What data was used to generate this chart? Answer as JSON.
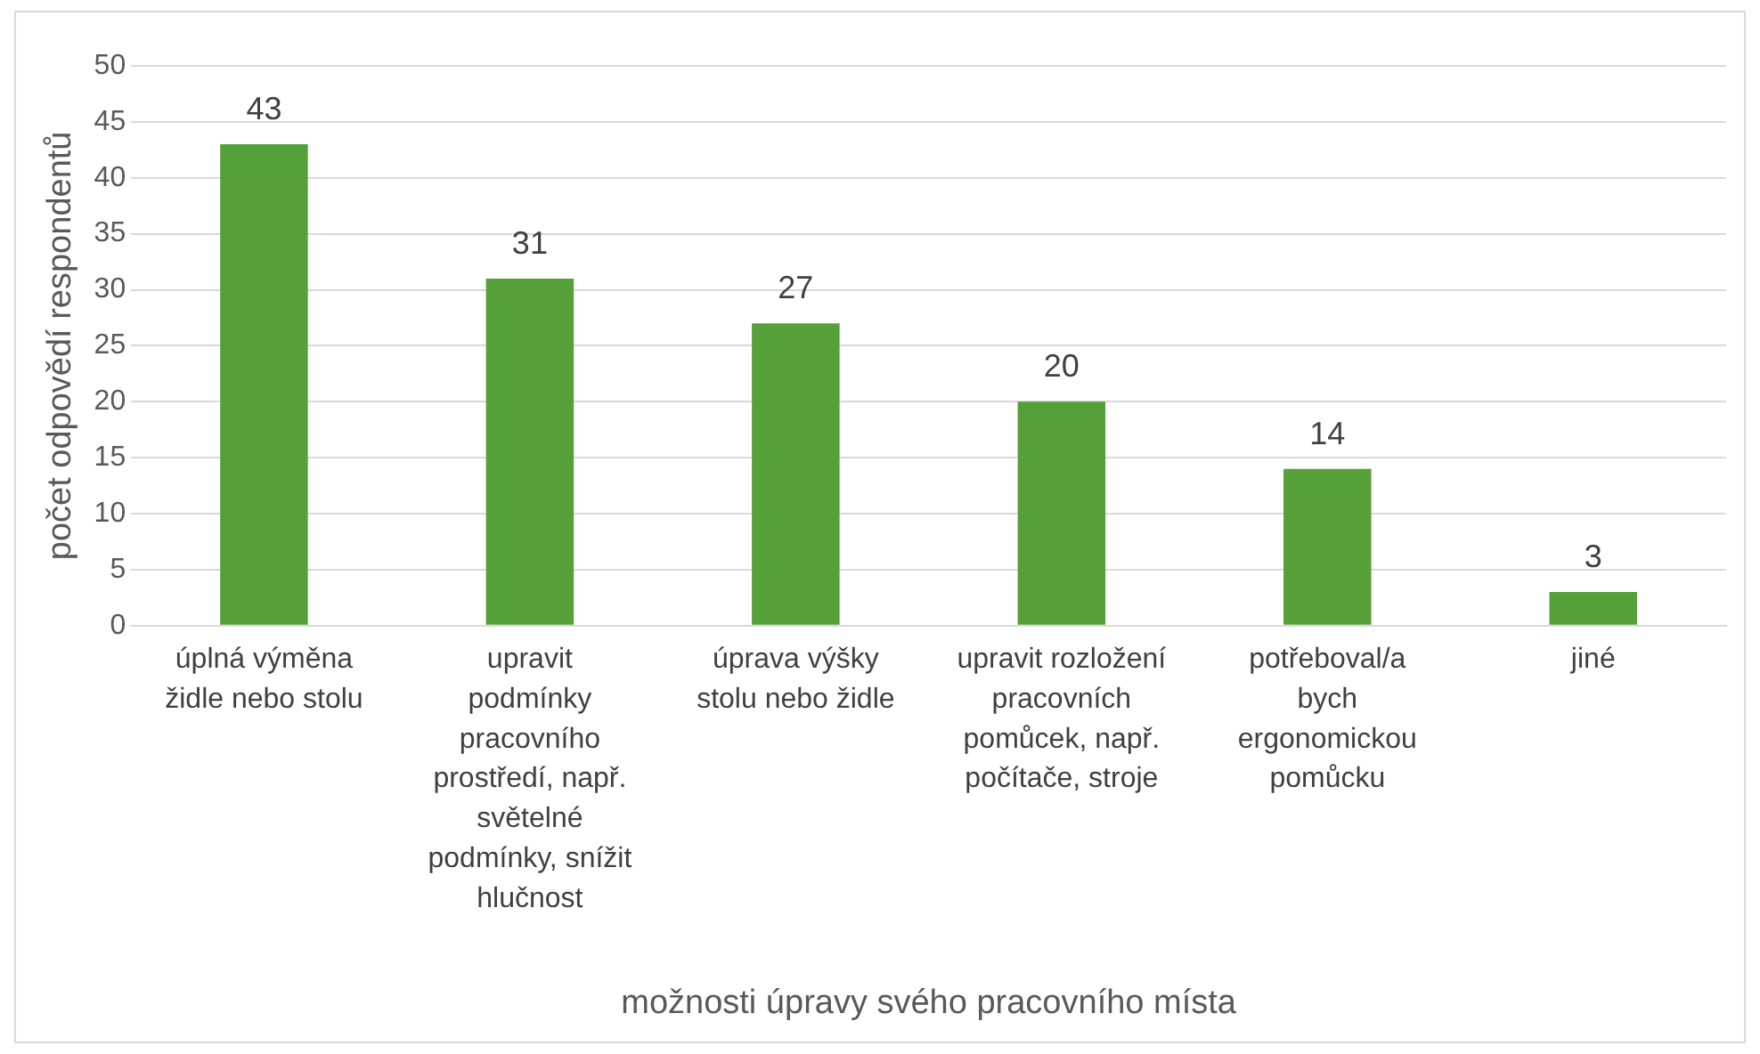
{
  "chart_data": {
    "type": "bar",
    "xlabel": "možnosti úpravy svého pracovního místa",
    "ylabel": "počet odpovědí respondentů",
    "categories": [
      "úplná výměna židle nebo stolu",
      "upravit podmínky pracovního prostředí, např. světelné podmínky, snížit hlučnost",
      "úprava výšky stolu nebo židle",
      "upravit rozložení pracovních pomůcek, např. počítače, stroje",
      "potřeboval/a bych ergonomickou pomůcku",
      "jiné"
    ],
    "values": [
      43,
      31,
      27,
      20,
      14,
      3
    ],
    "color": "#56a03a",
    "ylim": [
      0,
      50
    ],
    "yticks": [
      0,
      5,
      10,
      15,
      20,
      25,
      30,
      35,
      40,
      45,
      50
    ],
    "grid": "y",
    "data_labels": true
  }
}
